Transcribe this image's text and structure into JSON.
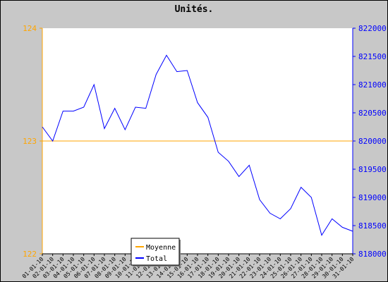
{
  "chart_data": {
    "type": "line",
    "title": "Unités.",
    "x": [
      "01-01-10",
      "02-01-10",
      "03-01-10",
      "04-01-10",
      "05-01-10",
      "06-01-10",
      "07-01-10",
      "08-01-10",
      "09-01-10",
      "10-01-10",
      "11-01-10",
      "12-01-10",
      "13-01-10",
      "14-01-10",
      "15-01-10",
      "16-01-10",
      "17-01-10",
      "18-01-10",
      "19-01-10",
      "20-01-10",
      "21-01-10",
      "22-01-10",
      "23-01-10",
      "24-01-10",
      "25-01-10",
      "26-01-10",
      "27-01-10",
      "28-01-10",
      "29-01-10",
      "30-01-10",
      "31-01-10"
    ],
    "y_left": {
      "ylim": [
        122,
        124
      ],
      "ticks": [
        "122",
        "123",
        "124"
      ],
      "color": "#ffa500"
    },
    "y_right": {
      "ylim": [
        818000,
        822000
      ],
      "ticks": [
        "818000",
        "818500",
        "819000",
        "819500",
        "820000",
        "820500",
        "821000",
        "821500",
        "822000"
      ],
      "color": "#0000ff"
    },
    "series": [
      {
        "name": "Moyenne",
        "axis": "left",
        "color": "#ffa500",
        "values": [
          123,
          123,
          123,
          123,
          123,
          123,
          123,
          123,
          123,
          123,
          123,
          123,
          123,
          123,
          123,
          123,
          123,
          123,
          123,
          123,
          123,
          123,
          123,
          123,
          123,
          123,
          123,
          123,
          123,
          123,
          123
        ]
      },
      {
        "name": "Total",
        "axis": "right",
        "color": "#0000ff",
        "values": [
          820250,
          820000,
          820530,
          820530,
          820600,
          821000,
          820220,
          820580,
          820200,
          820600,
          820580,
          821180,
          821520,
          821230,
          821250,
          820680,
          820420,
          819800,
          819640,
          819370,
          819570,
          818960,
          818720,
          818620,
          818800,
          819180,
          819000,
          818330,
          818620,
          818470,
          818400
        ]
      }
    ],
    "grid": false,
    "legend": "bottom-left"
  }
}
